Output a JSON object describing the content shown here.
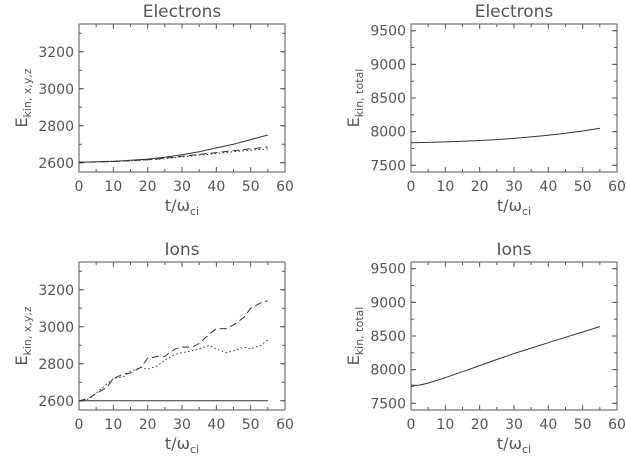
{
  "chart_data": [
    {
      "type": "line",
      "title": "Electrons",
      "xlabel": "t/ω_ci",
      "xlabel_main": "t/ω",
      "xlabel_sub": "ci",
      "ylabel": "E_kin, x,y,z",
      "ylabel_main": "E",
      "ylabel_sub": "kin, x,y,z",
      "xlim": [
        0,
        60
      ],
      "ylim": [
        2550,
        3350
      ],
      "xticks": [
        "0",
        "10",
        "20",
        "30",
        "40",
        "50",
        "60"
      ],
      "yticks": [
        "2600",
        "2800",
        "3000",
        "3200"
      ],
      "grid": false,
      "series": [
        {
          "style": "solid",
          "x": [
            0,
            5,
            10,
            15,
            20,
            25,
            30,
            35,
            40,
            45,
            50,
            55
          ],
          "y": [
            2603,
            2605,
            2608,
            2613,
            2620,
            2630,
            2643,
            2660,
            2680,
            2700,
            2725,
            2750
          ]
        },
        {
          "style": "dashed",
          "x": [
            0,
            5,
            10,
            15,
            20,
            25,
            30,
            35,
            40,
            45,
            50,
            55
          ],
          "y": [
            2603,
            2604,
            2607,
            2611,
            2616,
            2624,
            2635,
            2645,
            2655,
            2665,
            2675,
            2685
          ]
        },
        {
          "style": "dotted",
          "x": [
            0,
            5,
            10,
            15,
            20,
            25,
            30,
            35,
            40,
            45,
            50,
            55
          ],
          "y": [
            2603,
            2604,
            2607,
            2611,
            2616,
            2622,
            2632,
            2640,
            2650,
            2660,
            2668,
            2675
          ]
        }
      ]
    },
    {
      "type": "line",
      "title": "Electrons",
      "xlabel": "t/ω_ci",
      "xlabel_main": "t/ω",
      "xlabel_sub": "ci",
      "ylabel": "E_kin, total",
      "ylabel_main": "E",
      "ylabel_sub": "kin, total",
      "xlim": [
        0,
        60
      ],
      "ylim": [
        7400,
        9600
      ],
      "xticks": [
        "0",
        "10",
        "20",
        "30",
        "40",
        "50",
        "60"
      ],
      "yticks": [
        "7500",
        "8000",
        "8500",
        "9000",
        "9500"
      ],
      "grid": false,
      "series": [
        {
          "style": "solid",
          "x": [
            0,
            5,
            10,
            15,
            20,
            25,
            30,
            35,
            40,
            45,
            50,
            55
          ],
          "y": [
            7835,
            7840,
            7847,
            7856,
            7868,
            7882,
            7900,
            7922,
            7945,
            7975,
            8010,
            8050
          ]
        }
      ]
    },
    {
      "type": "line",
      "title": "Ions",
      "xlabel": "t/ω_ci",
      "xlabel_main": "t/ω",
      "xlabel_sub": "ci",
      "ylabel": "E_kin, x,y,z",
      "ylabel_main": "E",
      "ylabel_sub": "kin, x,y,z",
      "xlim": [
        0,
        60
      ],
      "ylim": [
        2550,
        3350
      ],
      "xticks": [
        "0",
        "10",
        "20",
        "30",
        "40",
        "50",
        "60"
      ],
      "yticks": [
        "2600",
        "2800",
        "3000",
        "3200"
      ],
      "grid": false,
      "series": [
        {
          "style": "solid",
          "x": [
            0,
            5,
            10,
            15,
            20,
            25,
            30,
            35,
            40,
            45,
            50,
            55
          ],
          "y": [
            2600,
            2600,
            2600,
            2600,
            2600,
            2600,
            2600,
            2600,
            2600,
            2600,
            2600,
            2600
          ]
        },
        {
          "style": "dashed",
          "x": [
            0,
            3,
            5,
            8,
            10,
            13,
            15,
            18,
            20,
            23,
            25,
            28,
            30,
            33,
            35,
            38,
            40,
            43,
            45,
            48,
            50,
            53,
            55
          ],
          "y": [
            2600,
            2615,
            2640,
            2670,
            2720,
            2745,
            2750,
            2780,
            2830,
            2840,
            2840,
            2880,
            2890,
            2890,
            2910,
            2960,
            2990,
            2990,
            3010,
            3050,
            3100,
            3130,
            3140
          ]
        },
        {
          "style": "dotted",
          "x": [
            0,
            3,
            5,
            8,
            10,
            13,
            15,
            18,
            20,
            23,
            25,
            28,
            30,
            33,
            35,
            38,
            40,
            43,
            45,
            48,
            50,
            53,
            55
          ],
          "y": [
            2600,
            2610,
            2640,
            2690,
            2720,
            2730,
            2760,
            2780,
            2770,
            2790,
            2820,
            2850,
            2860,
            2870,
            2880,
            2900,
            2880,
            2860,
            2870,
            2890,
            2880,
            2900,
            2930
          ]
        }
      ]
    },
    {
      "type": "line",
      "title": "Ions",
      "xlabel": "t/ω_ci",
      "xlabel_main": "t/ω",
      "xlabel_sub": "ci",
      "ylabel": "E_kin, total",
      "ylabel_main": "E",
      "ylabel_sub": "kin, total",
      "xlim": [
        0,
        60
      ],
      "ylim": [
        7400,
        9600
      ],
      "xticks": [
        "0",
        "10",
        "20",
        "30",
        "40",
        "50",
        "60"
      ],
      "yticks": [
        "7500",
        "8000",
        "8500",
        "9000",
        "9500"
      ],
      "grid": false,
      "series": [
        {
          "style": "solid",
          "x": [
            0,
            2,
            5,
            10,
            15,
            20,
            25,
            30,
            35,
            40,
            45,
            50,
            55
          ],
          "y": [
            7770,
            7765,
            7800,
            7880,
            7970,
            8060,
            8150,
            8240,
            8320,
            8400,
            8480,
            8560,
            8640
          ]
        }
      ]
    }
  ]
}
